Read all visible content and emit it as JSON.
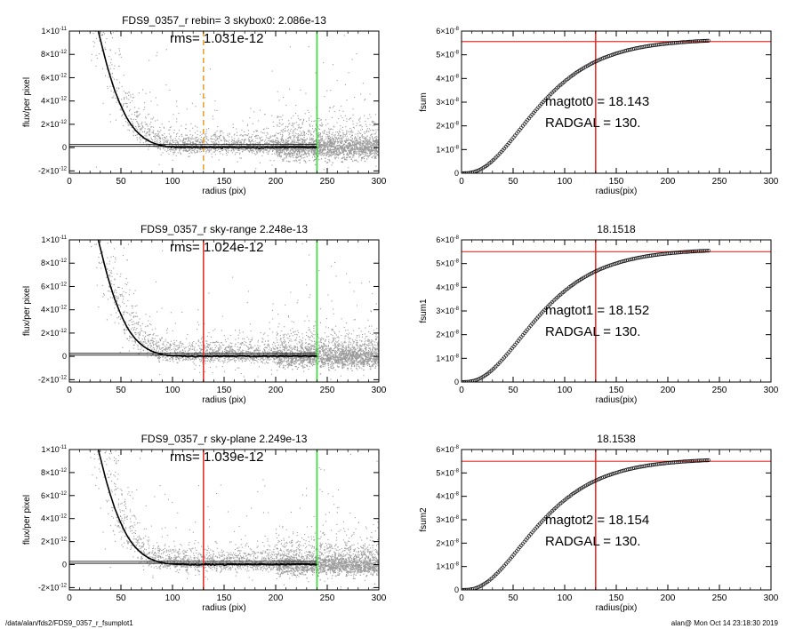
{
  "colors": {
    "background": "#ffffff",
    "axes": "#000000",
    "scatter": "#9a9a9a",
    "profile": "#000000",
    "skybox_marker": "#f0a030",
    "fit_marker": "#e8322c",
    "sky_marker": "#33dd33",
    "cumulative_points": "#000000"
  },
  "footer": {
    "path": "/data/alan/fds2/FDS9_0357_r_fsumplot1",
    "stamp": "alan@  Mon Oct 14 23:18:30 2019"
  },
  "chart_data": [
    {
      "type": "scatter",
      "title": "FDS9_0357_r rebin= 3    skybox0:  2.086e-13",
      "annotation": "rms= 1.031e-12",
      "xlabel": "radius (pix)",
      "ylabel": "flux/per pixel",
      "xlim": [
        0,
        300
      ],
      "ylim": [
        -2.2e-12,
        1e-11
      ],
      "xticks": [
        "0",
        "50",
        "100",
        "150",
        "200",
        "250",
        "300"
      ],
      "yticks": [
        {
          "value": 1e-11,
          "mant": "1×10",
          "exp": "-11"
        },
        {
          "value": 8e-12,
          "mant": "8×10",
          "exp": "-12"
        },
        {
          "value": 6e-12,
          "mant": "6×10",
          "exp": "-12"
        },
        {
          "value": 4e-12,
          "mant": "4×10",
          "exp": "-12"
        },
        {
          "value": 2e-12,
          "mant": "2×10",
          "exp": "-12"
        },
        {
          "value": 0,
          "mant": "0",
          "exp": ""
        },
        {
          "value": -2e-12,
          "mant": "-2×10",
          "exp": "-12"
        }
      ],
      "profile": {
        "x": [
          28,
          32,
          36,
          40,
          44,
          48,
          52,
          56,
          60,
          64,
          68,
          72,
          76,
          80,
          85,
          90,
          95,
          100,
          110,
          120,
          130,
          140,
          150,
          160,
          180,
          200,
          220,
          240
        ],
        "y": [
          1e-11,
          8.6e-12,
          7.2e-12,
          6e-12,
          4.9e-12,
          4e-12,
          3.2e-12,
          2.5e-12,
          1.95e-12,
          1.5e-12,
          1.15e-12,
          8.5e-13,
          6.2e-13,
          4.4e-13,
          2.8e-13,
          1.7e-13,
          9e-14,
          4e-14,
          0,
          -2e-14,
          1e-14,
          -1e-14,
          0,
          1e-14,
          -1e-14,
          0,
          1e-14,
          0
        ]
      },
      "reference_lines": [
        {
          "axis": "y",
          "value": 2.8e-13,
          "x_range": [
            0,
            240
          ],
          "color": "#000000"
        },
        {
          "axis": "y",
          "value": 1.1e-13,
          "x_range": [
            0,
            240
          ],
          "color": "#000000"
        },
        {
          "axis": "x",
          "value": 130,
          "color": "#f0a030",
          "dashed": true
        },
        {
          "axis": "x",
          "value": 240,
          "color": "#33dd33"
        }
      ],
      "grid": false
    },
    {
      "type": "scatter",
      "title": "",
      "annotation": "",
      "labels_text": [
        "magtot0 =  18.143",
        "RADGAL =    130."
      ],
      "xlabel": "radius(pix)",
      "ylabel": "fsum",
      "xlim": [
        0,
        300
      ],
      "ylim": [
        0,
        6e-08
      ],
      "xticks": [
        "0",
        "50",
        "100",
        "150",
        "200",
        "250",
        "300"
      ],
      "yticks": [
        {
          "value": 6e-08,
          "mant": "6×10",
          "exp": "-8"
        },
        {
          "value": 5e-08,
          "mant": "5×10",
          "exp": "-8"
        },
        {
          "value": 4e-08,
          "mant": "4×10",
          "exp": "-8"
        },
        {
          "value": 3e-08,
          "mant": "3×10",
          "exp": "-8"
        },
        {
          "value": 2e-08,
          "mant": "2×10",
          "exp": "-8"
        },
        {
          "value": 1e-08,
          "mant": "1×10",
          "exp": "-8"
        },
        {
          "value": 0,
          "mant": "0",
          "exp": ""
        }
      ],
      "curve": {
        "asymptote": 5.6e-08,
        "scale_radius": 28,
        "x_max": 240,
        "end_value": 5.7e-08
      },
      "reference_lines": [
        {
          "axis": "y",
          "value": 5.56e-08,
          "color": "#e8322c"
        },
        {
          "axis": "x",
          "value": 130,
          "color": "#e8322c"
        }
      ],
      "grid": false
    },
    {
      "type": "scatter",
      "title": "FDS9_0357_r sky-range  2.248e-13",
      "annotation": "rms= 1.024e-12",
      "xlabel": "radius (pix)",
      "ylabel": "flux/per pixel",
      "xlim": [
        0,
        300
      ],
      "ylim": [
        -2.2e-12,
        1e-11
      ],
      "xticks": [
        "0",
        "50",
        "100",
        "150",
        "200",
        "250",
        "300"
      ],
      "yticks": [
        {
          "value": 1e-11,
          "mant": "1×10",
          "exp": "-11"
        },
        {
          "value": 8e-12,
          "mant": "8×10",
          "exp": "-12"
        },
        {
          "value": 6e-12,
          "mant": "6×10",
          "exp": "-12"
        },
        {
          "value": 4e-12,
          "mant": "4×10",
          "exp": "-12"
        },
        {
          "value": 2e-12,
          "mant": "2×10",
          "exp": "-12"
        },
        {
          "value": 0,
          "mant": "0",
          "exp": ""
        },
        {
          "value": -2e-12,
          "mant": "-2×10",
          "exp": "-12"
        }
      ],
      "profile": {
        "x": [
          28,
          32,
          36,
          40,
          44,
          48,
          52,
          56,
          60,
          64,
          68,
          72,
          76,
          80,
          85,
          90,
          95,
          100,
          110,
          120,
          130,
          140,
          150,
          160,
          180,
          200,
          220,
          240
        ],
        "y": [
          1e-11,
          8.6e-12,
          7.2e-12,
          6e-12,
          4.9e-12,
          4e-12,
          3.2e-12,
          2.5e-12,
          1.95e-12,
          1.5e-12,
          1.15e-12,
          8.5e-13,
          6.2e-13,
          4.4e-13,
          2.8e-13,
          1.7e-13,
          9e-14,
          4e-14,
          0,
          -2e-14,
          1e-14,
          -1e-14,
          0,
          1e-14,
          -1e-14,
          0,
          1e-14,
          0
        ]
      },
      "reference_lines": [
        {
          "axis": "y",
          "value": 2.8e-13,
          "x_range": [
            0,
            240
          ],
          "color": "#000000"
        },
        {
          "axis": "y",
          "value": 1.1e-13,
          "x_range": [
            0,
            240
          ],
          "color": "#000000"
        },
        {
          "axis": "x",
          "value": 130,
          "color": "#e8322c"
        },
        {
          "axis": "x",
          "value": 240,
          "color": "#33dd33"
        }
      ],
      "grid": false
    },
    {
      "type": "scatter",
      "title": "18.1518",
      "annotation": "",
      "labels_text": [
        "magtot1 =  18.152",
        "RADGAL =    130."
      ],
      "xlabel": "radius(pix)",
      "ylabel": "fsum1",
      "xlim": [
        0,
        300
      ],
      "ylim": [
        0,
        6e-08
      ],
      "xticks": [
        "0",
        "50",
        "100",
        "150",
        "200",
        "250",
        "300"
      ],
      "yticks": [
        {
          "value": 6e-08,
          "mant": "6×10",
          "exp": "-8"
        },
        {
          "value": 5e-08,
          "mant": "5×10",
          "exp": "-8"
        },
        {
          "value": 4e-08,
          "mant": "4×10",
          "exp": "-8"
        },
        {
          "value": 3e-08,
          "mant": "3×10",
          "exp": "-8"
        },
        {
          "value": 2e-08,
          "mant": "2×10",
          "exp": "-8"
        },
        {
          "value": 1e-08,
          "mant": "1×10",
          "exp": "-8"
        },
        {
          "value": 0,
          "mant": "0",
          "exp": ""
        }
      ],
      "curve": {
        "asymptote": 5.55e-08,
        "scale_radius": 28,
        "x_max": 240,
        "end_value": 5.5e-08
      },
      "reference_lines": [
        {
          "axis": "y",
          "value": 5.5e-08,
          "color": "#e8322c"
        },
        {
          "axis": "x",
          "value": 130,
          "color": "#e8322c"
        }
      ],
      "grid": false
    },
    {
      "type": "scatter",
      "title": "FDS9_0357_r sky-plane  2.249e-13",
      "annotation": "rms= 1.039e-12",
      "xlabel": "radius (pix)",
      "ylabel": "flux/per pixel",
      "xlim": [
        0,
        300
      ],
      "ylim": [
        -2.2e-12,
        1e-11
      ],
      "xticks": [
        "0",
        "50",
        "100",
        "150",
        "200",
        "250",
        "300"
      ],
      "yticks": [
        {
          "value": 1e-11,
          "mant": "1×10",
          "exp": "-11"
        },
        {
          "value": 8e-12,
          "mant": "8×10",
          "exp": "-12"
        },
        {
          "value": 6e-12,
          "mant": "6×10",
          "exp": "-12"
        },
        {
          "value": 4e-12,
          "mant": "4×10",
          "exp": "-12"
        },
        {
          "value": 2e-12,
          "mant": "2×10",
          "exp": "-12"
        },
        {
          "value": 0,
          "mant": "0",
          "exp": ""
        },
        {
          "value": -2e-12,
          "mant": "-2×10",
          "exp": "-12"
        }
      ],
      "profile": {
        "x": [
          28,
          32,
          36,
          40,
          44,
          48,
          52,
          56,
          60,
          64,
          68,
          72,
          76,
          80,
          85,
          90,
          95,
          100,
          110,
          120,
          130,
          140,
          150,
          160,
          180,
          200,
          220,
          240
        ],
        "y": [
          1e-11,
          8.6e-12,
          7.2e-12,
          6e-12,
          4.9e-12,
          4e-12,
          3.2e-12,
          2.5e-12,
          1.95e-12,
          1.5e-12,
          1.15e-12,
          8.5e-13,
          6.2e-13,
          4.4e-13,
          2.8e-13,
          1.7e-13,
          9e-14,
          4e-14,
          0,
          -2e-14,
          1e-14,
          -1e-14,
          0,
          1e-14,
          -1e-14,
          0,
          1e-14,
          0
        ]
      },
      "reference_lines": [
        {
          "axis": "y",
          "value": 2.8e-13,
          "x_range": [
            0,
            240
          ],
          "color": "#000000"
        },
        {
          "axis": "y",
          "value": 1.1e-13,
          "x_range": [
            0,
            240
          ],
          "color": "#000000"
        },
        {
          "axis": "x",
          "value": 130,
          "color": "#e8322c"
        },
        {
          "axis": "x",
          "value": 240,
          "color": "#33dd33"
        }
      ],
      "grid": false
    },
    {
      "type": "scatter",
      "title": "18.1538",
      "annotation": "",
      "labels_text": [
        "magtot2 =  18.154",
        "RADGAL =    130."
      ],
      "xlabel": "radius(pix)",
      "ylabel": "fsum2",
      "xlim": [
        0,
        300
      ],
      "ylim": [
        0,
        6e-08
      ],
      "xticks": [
        "0",
        "50",
        "100",
        "150",
        "200",
        "250",
        "300"
      ],
      "yticks": [
        {
          "value": 6e-08,
          "mant": "6×10",
          "exp": "-8"
        },
        {
          "value": 5e-08,
          "mant": "5×10",
          "exp": "-8"
        },
        {
          "value": 4e-08,
          "mant": "4×10",
          "exp": "-8"
        },
        {
          "value": 3e-08,
          "mant": "3×10",
          "exp": "-8"
        },
        {
          "value": 2e-08,
          "mant": "2×10",
          "exp": "-8"
        },
        {
          "value": 1e-08,
          "mant": "1×10",
          "exp": "-8"
        },
        {
          "value": 0,
          "mant": "0",
          "exp": ""
        }
      ],
      "curve": {
        "asymptote": 5.55e-08,
        "scale_radius": 28,
        "x_max": 240,
        "end_value": 5.5e-08
      },
      "reference_lines": [
        {
          "axis": "y",
          "value": 5.5e-08,
          "color": "#e8322c"
        },
        {
          "axis": "x",
          "value": 130,
          "color": "#e8322c"
        }
      ],
      "grid": false
    }
  ]
}
